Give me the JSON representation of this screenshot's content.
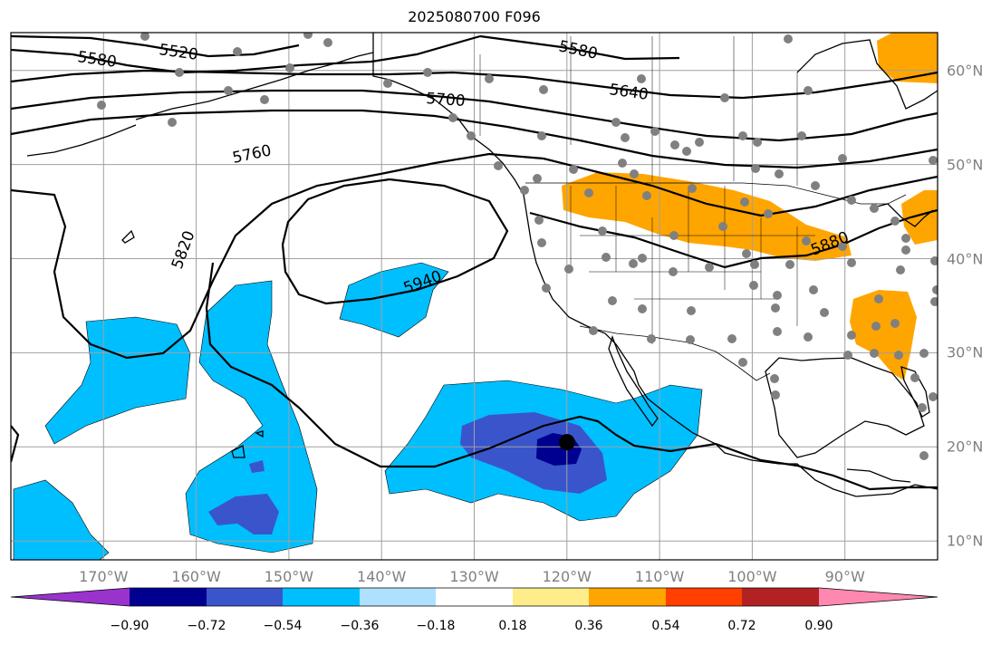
{
  "title": "2025080700 F096",
  "map": {
    "lon_range": [
      -180,
      -80
    ],
    "lat_range": [
      8,
      64
    ],
    "lon_ticks": [
      {
        "value": -170,
        "label": "170°W"
      },
      {
        "value": -160,
        "label": "160°W"
      },
      {
        "value": -150,
        "label": "150°W"
      },
      {
        "value": -140,
        "label": "140°W"
      },
      {
        "value": -130,
        "label": "130°W"
      },
      {
        "value": -120,
        "label": "120°W"
      },
      {
        "value": -110,
        "label": "110°W"
      },
      {
        "value": -100,
        "label": "100°W"
      },
      {
        "value": -90,
        "label": "90°W"
      }
    ],
    "lat_ticks": [
      {
        "value": 10,
        "label": "10°N"
      },
      {
        "value": 20,
        "label": "20°N"
      },
      {
        "value": 30,
        "label": "30°N"
      },
      {
        "value": 40,
        "label": "40°N"
      },
      {
        "value": 50,
        "label": "50°N"
      },
      {
        "value": 60,
        "label": "60°N"
      }
    ],
    "gridlines": true,
    "contour_labels": [
      "5520",
      "5580",
      "5580",
      "5640",
      "5700",
      "5760",
      "5820",
      "5880",
      "5940"
    ],
    "marker": {
      "lon": -120,
      "lat": 20.5,
      "name": "storm-center"
    }
  },
  "colorbar": {
    "colors": [
      "#9933cc",
      "#000090",
      "#3a55cc",
      "#00bfff",
      "#aee0ff",
      "#ffffff",
      "#ffec8b",
      "#ffa500",
      "#ff4000",
      "#b22222",
      "#ff88b0"
    ],
    "tick_labels": [
      "−0.90",
      "−0.72",
      "−0.54",
      "−0.36",
      "−0.18",
      "0.18",
      "0.36",
      "0.54",
      "0.72",
      "0.90"
    ],
    "extend": "both"
  },
  "station_color": "#808080"
}
